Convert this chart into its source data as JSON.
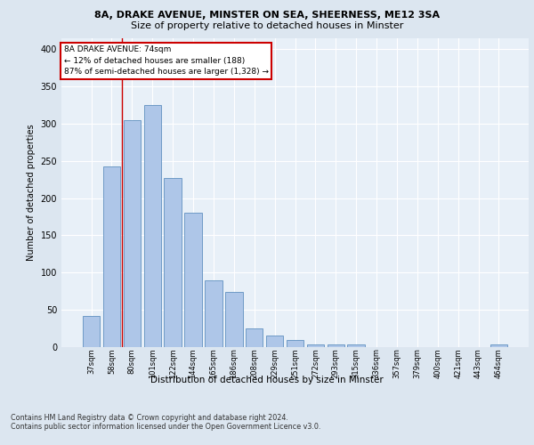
{
  "title1": "8A, DRAKE AVENUE, MINSTER ON SEA, SHEERNESS, ME12 3SA",
  "title2": "Size of property relative to detached houses in Minster",
  "xlabel": "Distribution of detached houses by size in Minster",
  "ylabel": "Number of detached properties",
  "categories": [
    "37sqm",
    "58sqm",
    "80sqm",
    "101sqm",
    "122sqm",
    "144sqm",
    "165sqm",
    "186sqm",
    "208sqm",
    "229sqm",
    "251sqm",
    "272sqm",
    "293sqm",
    "315sqm",
    "336sqm",
    "357sqm",
    "379sqm",
    "400sqm",
    "421sqm",
    "443sqm",
    "464sqm"
  ],
  "values": [
    42,
    242,
    305,
    325,
    227,
    180,
    90,
    74,
    25,
    15,
    10,
    4,
    4,
    4,
    0,
    0,
    0,
    0,
    0,
    0,
    4
  ],
  "bar_color": "#aec6e8",
  "bar_edge_color": "#6090c0",
  "vline_x": 1.5,
  "vline_color": "#cc0000",
  "annotation_text": "8A DRAKE AVENUE: 74sqm\n← 12% of detached houses are smaller (188)\n87% of semi-detached houses are larger (1,328) →",
  "annotation_box_color": "#ffffff",
  "annotation_box_edge": "#cc0000",
  "ylim": [
    0,
    415
  ],
  "yticks": [
    0,
    50,
    100,
    150,
    200,
    250,
    300,
    350,
    400
  ],
  "footer": "Contains HM Land Registry data © Crown copyright and database right 2024.\nContains public sector information licensed under the Open Government Licence v3.0.",
  "bg_color": "#dce6f0",
  "plot_bg_color": "#e8f0f8"
}
